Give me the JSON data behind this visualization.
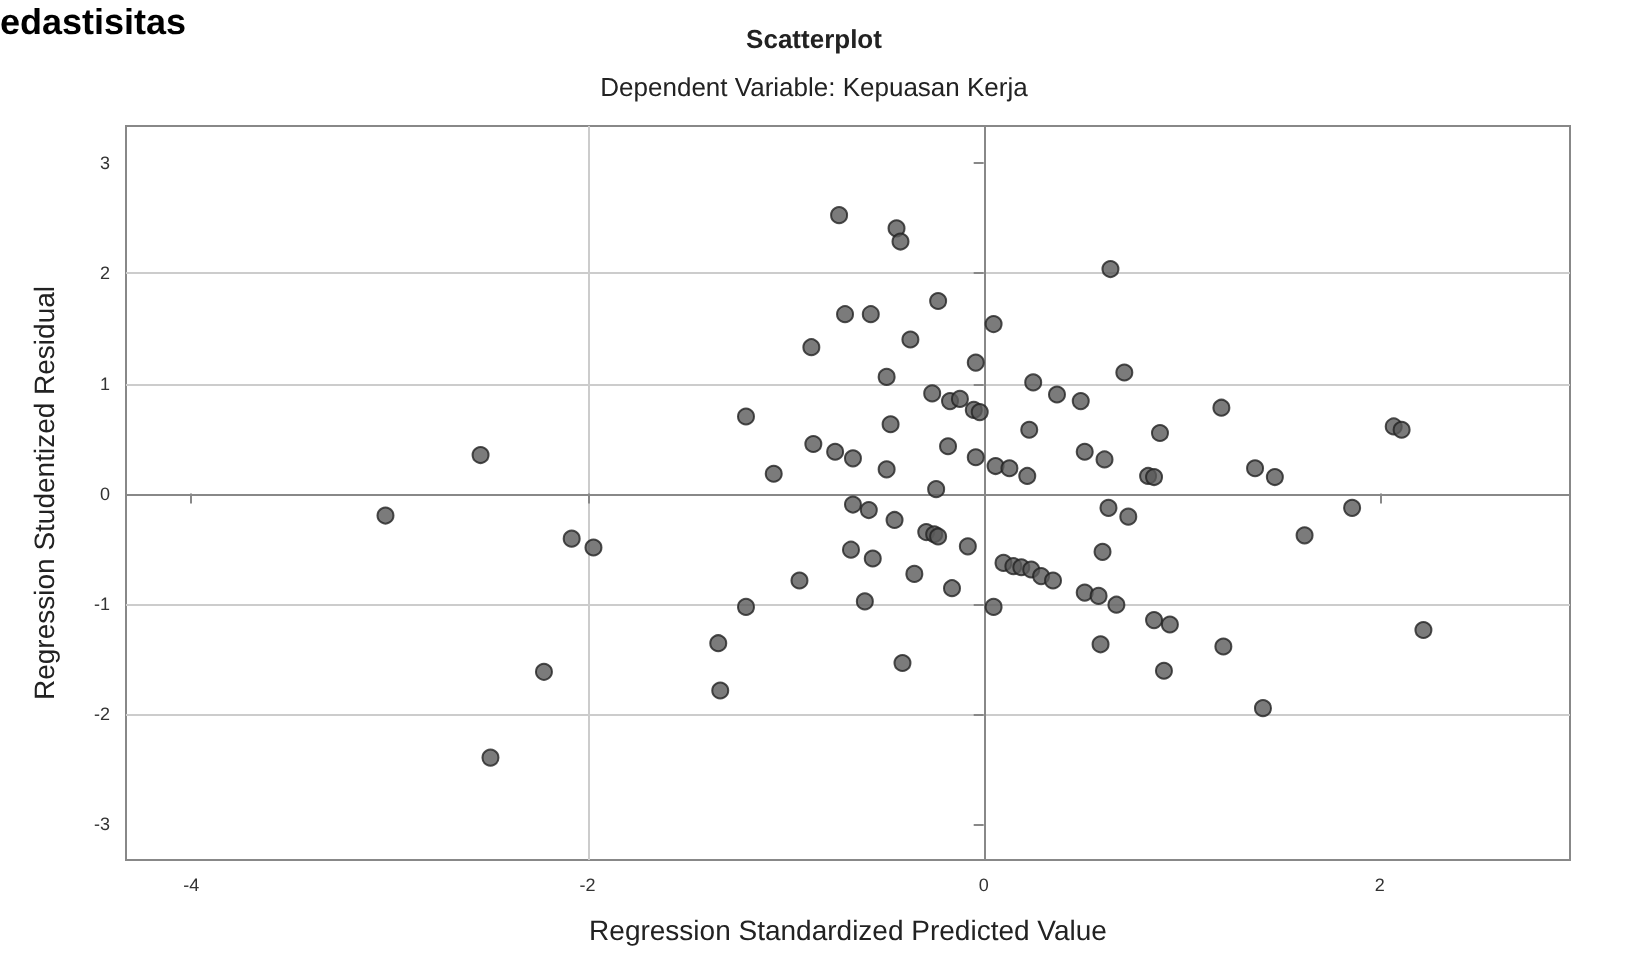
{
  "chart_data": {
    "type": "scatter",
    "title": "Scatterplot",
    "subtitle": "Dependent Variable: Kepuasan Kerja",
    "xlabel": "Regression Standardized Predicted Value",
    "ylabel": "Regression Studentized Residual",
    "annotations": [
      "edastisitas"
    ],
    "x": [
      -0.73,
      -0.7,
      -0.57,
      -0.87,
      -1.2,
      -2.54,
      -0.86,
      -0.75,
      -0.66,
      -1.06,
      -3.02,
      -0.66,
      -0.58,
      -2.08,
      -1.97,
      -0.67,
      -0.56,
      -0.93,
      -0.6,
      -1.2,
      -1.34,
      -2.22,
      -1.33,
      -2.49,
      -0.44,
      -0.42,
      0.64,
      -0.23,
      0.05,
      -0.37,
      -0.04,
      -0.49,
      0.71,
      0.25,
      0.37,
      0.49,
      -0.26,
      -0.17,
      -0.12,
      -0.05,
      -0.02,
      1.2,
      -0.47,
      0.23,
      0.89,
      2.07,
      2.11,
      -0.18,
      0.51,
      0.61,
      -0.04,
      0.06,
      0.13,
      0.22,
      -0.49,
      0.83,
      0.86,
      1.37,
      1.47,
      -0.24,
      -0.45,
      0.63,
      0.73,
      1.86,
      1.62,
      -0.29,
      -0.25,
      -0.23,
      -0.08,
      0.6,
      0.1,
      0.15,
      0.19,
      0.24,
      0.29,
      0.35,
      -0.35,
      -0.16,
      0.51,
      0.58,
      0.67,
      0.05,
      0.86,
      0.94,
      2.22,
      1.21,
      0.59,
      0.91,
      -0.41,
      1.41
    ],
    "values": [
      2.53,
      1.63,
      1.63,
      1.33,
      0.7,
      0.35,
      0.45,
      0.38,
      0.32,
      0.18,
      -0.2,
      -0.1,
      -0.15,
      -0.41,
      -0.49,
      -0.51,
      -0.59,
      -0.79,
      -0.98,
      -1.03,
      -1.36,
      -1.62,
      -1.79,
      -2.4,
      2.41,
      2.29,
      2.04,
      1.75,
      1.54,
      1.4,
      1.19,
      1.06,
      1.1,
      1.01,
      0.9,
      0.84,
      0.91,
      0.84,
      0.86,
      0.76,
      0.74,
      0.78,
      0.63,
      0.58,
      0.55,
      0.61,
      0.58,
      0.43,
      0.38,
      0.31,
      0.33,
      0.25,
      0.23,
      0.16,
      0.22,
      0.16,
      0.15,
      0.23,
      0.15,
      0.04,
      -0.24,
      -0.13,
      -0.21,
      -0.13,
      -0.38,
      -0.35,
      -0.37,
      -0.39,
      -0.48,
      -0.53,
      -0.63,
      -0.66,
      -0.67,
      -0.69,
      -0.75,
      -0.79,
      -0.73,
      -0.86,
      -0.9,
      -0.93,
      -1.01,
      -1.03,
      -1.15,
      -1.19,
      -1.24,
      -1.39,
      -1.37,
      -1.61,
      -1.54,
      -1.95
    ],
    "color": "#5a5a5a",
    "marker": "circle",
    "grid": true,
    "xlim": [
      -4.33,
      2.96
    ],
    "xticks": [
      -4,
      -2,
      0,
      2
    ],
    "ylim": [
      -3.33,
      3.34
    ],
    "yticks": [
      -3,
      -2,
      -1,
      0,
      1,
      2,
      3
    ]
  }
}
